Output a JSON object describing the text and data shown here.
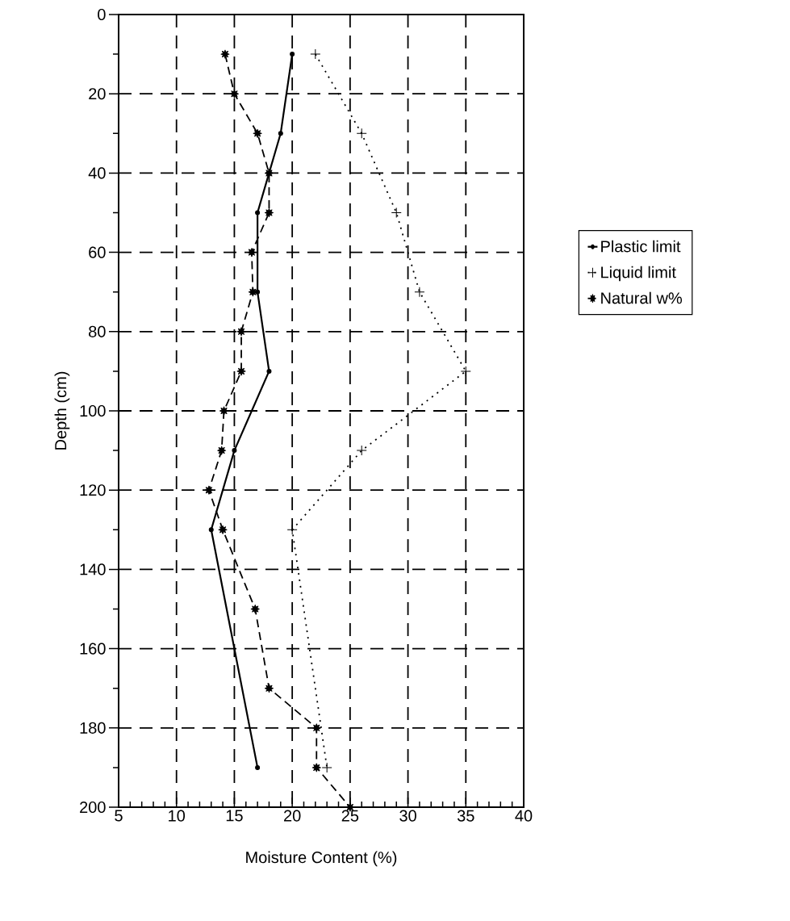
{
  "chart_data": {
    "type": "line",
    "xlabel": "Moisture Content (%)",
    "ylabel": "Depth (cm)",
    "xlim": [
      5,
      40
    ],
    "xticks": [
      5,
      10,
      15,
      20,
      25,
      30,
      35,
      40
    ],
    "ylim": [
      200,
      0
    ],
    "yticks": [
      0,
      20,
      40,
      60,
      80,
      100,
      120,
      140,
      160,
      180,
      200
    ],
    "grid": true,
    "legend": "right",
    "series": [
      {
        "name": "Plastic limit",
        "color": "#000000",
        "marker": "circle",
        "line_style": "solid",
        "x": [
          20,
          19,
          17,
          17,
          18,
          15,
          13,
          17
        ],
        "values": [
          10,
          30,
          50,
          70,
          90,
          110,
          130,
          190
        ]
      },
      {
        "name": "Liquid limit",
        "color": "#000000",
        "marker": "cross",
        "line_style": "dotted",
        "x": [
          22,
          26,
          29,
          31,
          35,
          26,
          20,
          23
        ],
        "values": [
          10,
          30,
          50,
          70,
          90,
          110,
          130,
          190
        ]
      },
      {
        "name": "Natural w%",
        "color": "#000000",
        "marker": "star",
        "line_style": "dashed",
        "x": [
          14.2,
          15,
          17,
          18,
          18,
          16.5,
          16.6,
          15.6,
          15.6,
          14.1,
          13.9,
          12.8,
          14,
          16.8,
          18,
          22.1,
          22.1,
          25
        ],
        "values": [
          10,
          20,
          30,
          40,
          50,
          60,
          70,
          80,
          90,
          100,
          110,
          120,
          130,
          150,
          170,
          180,
          190,
          200
        ]
      }
    ]
  }
}
